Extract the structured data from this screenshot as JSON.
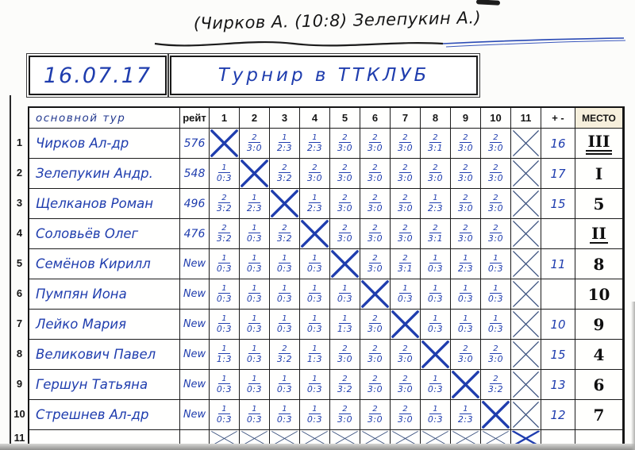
{
  "colors": {
    "ink_blue": "#1f3dae",
    "ink_black": "#1c1c1c",
    "marker_black": "#111111",
    "paper": "#fcfcfa"
  },
  "header_note": {
    "text": "(Чирков А. (10:8)  Зелепукин А.)"
  },
  "title_bar": {
    "date": "16.07.17",
    "title": "Турнир в ТТКЛУБ"
  },
  "table": {
    "columns": {
      "name": "основной тур",
      "rating": "рейт",
      "rounds": [
        "1",
        "2",
        "3",
        "4",
        "5",
        "6",
        "7",
        "8",
        "9",
        "10",
        "11"
      ],
      "plusminus": "+ -",
      "place": "МЕСТО"
    },
    "rows": [
      {
        "num": "1",
        "name": "Чирков Ал-др",
        "rating": "576",
        "cells": [
          "self",
          "2/3:0",
          "1/2:3",
          "1/2:3",
          "2/3:0",
          "2/3:0",
          "2/3:0",
          "2/3:1",
          "2/3:0",
          "2/3:0",
          "void"
        ],
        "pm": "16",
        "place": "III",
        "place_underline": "double"
      },
      {
        "num": "2",
        "name": "Зелепукин Андр.",
        "rating": "548",
        "cells": [
          "1/0:3",
          "self",
          "2/3:2",
          "2/3:0",
          "2/3:0",
          "2/3:0",
          "2/3:0",
          "2/3:0",
          "2/3:0",
          "2/3:0",
          "void"
        ],
        "pm": "17",
        "place": "I",
        "place_underline": "none"
      },
      {
        "num": "3",
        "name": "Щелканов Роман",
        "rating": "496",
        "cells": [
          "2/3:2",
          "1/2:3",
          "self",
          "1/2:3",
          "2/3:0",
          "2/3:0",
          "2/3:0",
          "1/2:3",
          "2/3:0",
          "2/3:0",
          "void"
        ],
        "pm": "15",
        "place": "5",
        "place_underline": "none"
      },
      {
        "num": "4",
        "name": "Соловьёв Олег",
        "rating": "476",
        "cells": [
          "2/3:2",
          "1/0:3",
          "2/3:2",
          "self",
          "2/3:0",
          "2/3:0",
          "2/3:0",
          "2/3:1",
          "2/3:0",
          "2/3:0",
          "void"
        ],
        "pm": "",
        "place": "II",
        "place_underline": "single"
      },
      {
        "num": "5",
        "name": "Семёнов Кирилл",
        "rating": "New",
        "cells": [
          "1/0:3",
          "1/0:3",
          "1/0:3",
          "1/0:3",
          "self",
          "2/3:0",
          "2/3:1",
          "1/0:3",
          "1/2:3",
          "1/0:3",
          "void"
        ],
        "pm": "11",
        "place": "8",
        "place_underline": "none"
      },
      {
        "num": "6",
        "name": "Пумпян Иона",
        "rating": "New",
        "cells": [
          "1/0:3",
          "1/0:3",
          "1/0:3",
          "1/0:3",
          "1/0:3",
          "self",
          "1/0:3",
          "1/0:3",
          "1/0:3",
          "1/0:3",
          "void"
        ],
        "pm": "",
        "place": "10",
        "place_underline": "none"
      },
      {
        "num": "7",
        "name": "Лейко Мария",
        "rating": "New",
        "cells": [
          "1/0:3",
          "1/0:3",
          "1/0:3",
          "1/0:3",
          "1/1:3",
          "2/3:0",
          "self",
          "1/0:3",
          "1/0:3",
          "1/0:3",
          "void"
        ],
        "pm": "10",
        "place": "9",
        "place_underline": "none"
      },
      {
        "num": "8",
        "name": "Великович Павел",
        "rating": "New",
        "cells": [
          "1/1:3",
          "1/0:3",
          "2/3:2",
          "1/1:3",
          "2/3:0",
          "2/3:0",
          "2/3:0",
          "self",
          "2/3:0",
          "2/3:0",
          "void"
        ],
        "pm": "15",
        "place": "4",
        "place_underline": "none"
      },
      {
        "num": "9",
        "name": "Гершун Татьяна",
        "rating": "New",
        "cells": [
          "1/0:3",
          "1/0:3",
          "1/0:3",
          "1/0:3",
          "2/3:2",
          "2/3:0",
          "2/3:0",
          "1/0:3",
          "self",
          "2/3:2",
          "void"
        ],
        "pm": "13",
        "place": "6",
        "place_underline": "none"
      },
      {
        "num": "10",
        "name": "Стрешнев Ал-др",
        "rating": "New",
        "cells": [
          "1/0:3",
          "1/0:3",
          "1/0:3",
          "1/0:3",
          "2/3:0",
          "2/3:0",
          "2/3:0",
          "1/0:3",
          "1/2:3",
          "self",
          "void"
        ],
        "pm": "12",
        "place": "7",
        "place_underline": "none"
      },
      {
        "num": "11",
        "name": "",
        "rating": "",
        "cells": [
          "void",
          "void",
          "void",
          "void",
          "void",
          "void",
          "void",
          "void",
          "void",
          "void",
          "self"
        ],
        "pm": "",
        "place": "",
        "place_underline": "none"
      }
    ]
  }
}
